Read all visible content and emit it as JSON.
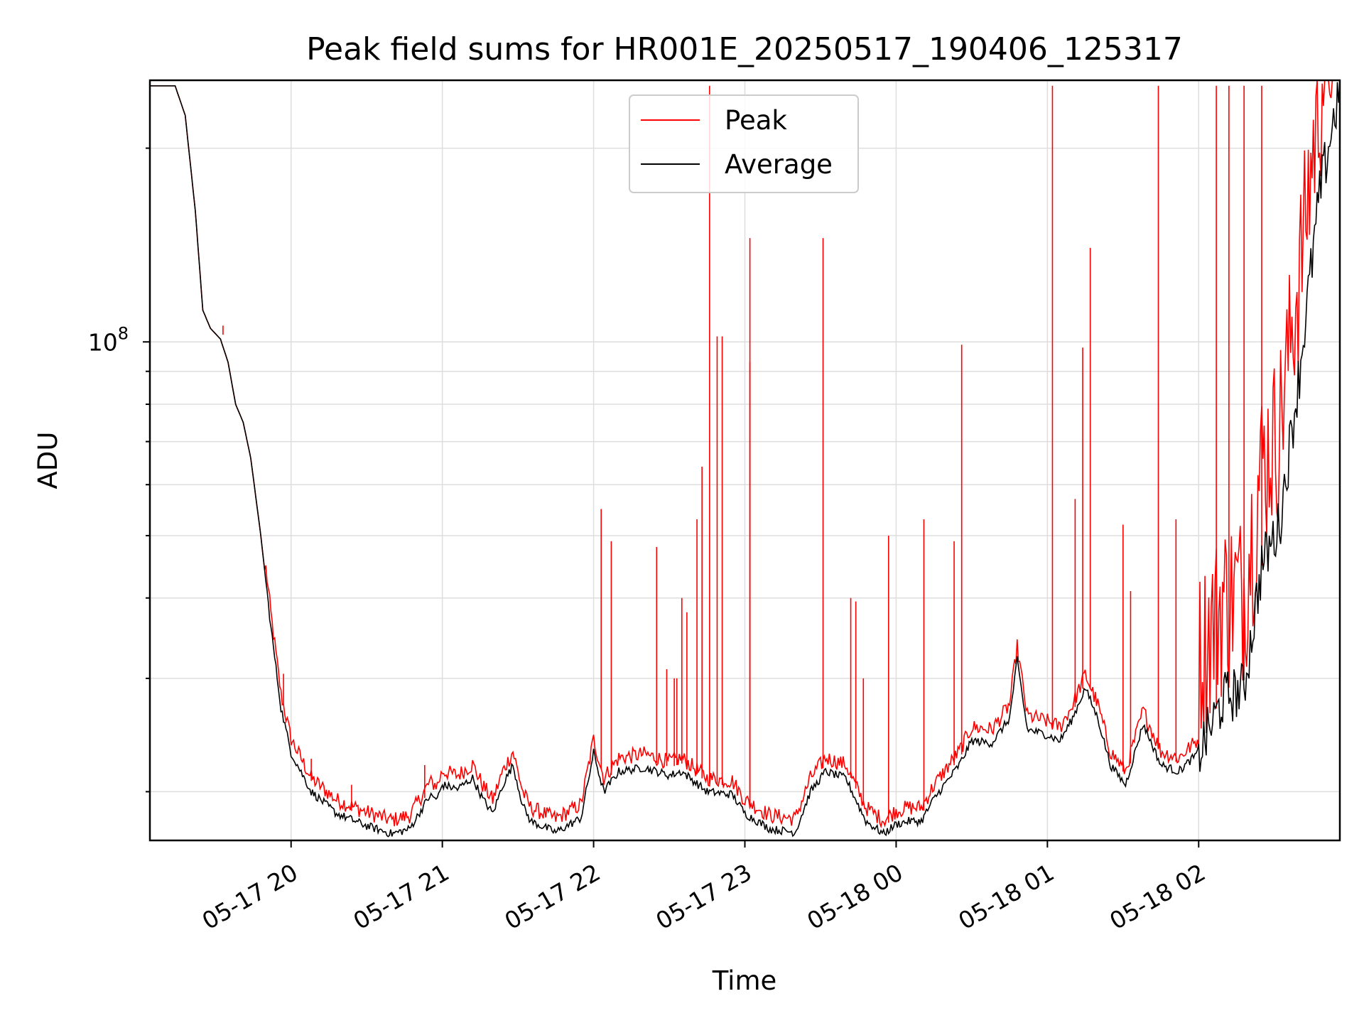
{
  "chart_data": {
    "type": "line",
    "title": "Peak field sums for HR001E_20250517_190406_125317",
    "xlabel": "Time",
    "ylabel": "ADU",
    "y_scale": "log",
    "ylim": [
      16800000,
      255000000
    ],
    "x_range": [
      "2025-05-17 19:04",
      "2025-05-18 02:56"
    ],
    "x_ticks": [
      {
        "label": "05-17 20",
        "time": "2025-05-17 20:00"
      },
      {
        "label": "05-17 21",
        "time": "2025-05-17 21:00"
      },
      {
        "label": "05-17 22",
        "time": "2025-05-17 22:00"
      },
      {
        "label": "05-17 23",
        "time": "2025-05-17 23:00"
      },
      {
        "label": "05-18 00",
        "time": "2025-05-18 00:00"
      },
      {
        "label": "05-18 01",
        "time": "2025-05-18 01:00"
      },
      {
        "label": "05-18 02",
        "time": "2025-05-18 02:00"
      }
    ],
    "y_major_ticks": [
      {
        "value": 100000000,
        "base": "10",
        "exponent": "8"
      }
    ],
    "y_minor_ticks": [
      20000000,
      30000000,
      40000000,
      50000000,
      60000000,
      70000000,
      80000000,
      90000000,
      200000000
    ],
    "grid": true,
    "legend_position": "top-center",
    "series": [
      {
        "name": "Average",
        "color": "#000000",
        "points": [
          [
            "2025-05-17 19:04",
            250000000.0
          ],
          [
            "2025-05-17 19:14",
            250000000.0
          ],
          [
            "2025-05-17 19:18",
            225000000.0
          ],
          [
            "2025-05-17 19:22",
            160000000.0
          ],
          [
            "2025-05-17 19:25",
            112000000.0
          ],
          [
            "2025-05-17 19:28",
            105000000.0
          ],
          [
            "2025-05-17 19:32",
            101000000.0
          ],
          [
            "2025-05-17 19:35",
            93000000.0
          ],
          [
            "2025-05-17 19:38",
            80000000.0
          ],
          [
            "2025-05-17 19:41",
            75000000.0
          ],
          [
            "2025-05-17 19:44",
            66000000.0
          ],
          [
            "2025-05-17 19:48",
            50000000.0
          ],
          [
            "2025-05-17 19:52",
            36000000.0
          ],
          [
            "2025-05-17 19:56",
            27000000.0
          ],
          [
            "2025-05-17 20:00",
            23000000.0
          ],
          [
            "2025-05-17 20:08",
            20000000.0
          ],
          [
            "2025-05-17 20:18",
            18500000.0
          ],
          [
            "2025-05-17 20:30",
            17700000.0
          ],
          [
            "2025-05-17 20:40",
            17200000.0
          ],
          [
            "2025-05-17 20:47",
            17500000.0
          ],
          [
            "2025-05-17 20:55",
            19700000.0
          ],
          [
            "2025-05-17 20:58",
            19500000.0
          ],
          [
            "2025-05-17 21:00",
            20500000.0
          ],
          [
            "2025-05-17 21:06",
            20200000.0
          ],
          [
            "2025-05-17 21:12",
            21000000.0
          ],
          [
            "2025-05-17 21:16",
            19500000.0
          ],
          [
            "2025-05-17 21:20",
            18500000.0
          ],
          [
            "2025-05-17 21:24",
            20500000.0
          ],
          [
            "2025-05-17 21:28",
            22000000.0
          ],
          [
            "2025-05-17 21:32",
            19000000.0
          ],
          [
            "2025-05-17 21:35",
            18000000.0
          ],
          [
            "2025-05-17 21:45",
            17300000.0
          ],
          [
            "2025-05-17 21:55",
            18200000.0
          ],
          [
            "2025-05-17 22:00",
            23000000.0
          ],
          [
            "2025-05-17 22:04",
            20000000.0
          ],
          [
            "2025-05-17 22:10",
            21500000.0
          ],
          [
            "2025-05-17 22:20",
            21800000.0
          ],
          [
            "2025-05-17 22:30",
            21200000.0
          ],
          [
            "2025-05-17 22:35",
            21500000.0
          ],
          [
            "2025-05-17 22:45",
            20000000.0
          ],
          [
            "2025-05-17 22:55",
            19800000.0
          ],
          [
            "2025-05-17 23:00",
            18500000.0
          ],
          [
            "2025-05-17 23:10",
            17500000.0
          ],
          [
            "2025-05-17 23:20",
            17300000.0
          ],
          [
            "2025-05-17 23:26",
            20000000.0
          ],
          [
            "2025-05-17 23:32",
            21500000.0
          ],
          [
            "2025-05-17 23:40",
            21000000.0
          ],
          [
            "2025-05-17 23:48",
            18000000.0
          ],
          [
            "2025-05-17 23:55",
            17200000.0
          ],
          [
            "2025-05-18 00:00",
            17800000.0
          ],
          [
            "2025-05-18 00:05",
            18000000.0
          ],
          [
            "2025-05-18 00:10",
            18000000.0
          ],
          [
            "2025-05-18 00:15",
            19500000.0
          ],
          [
            "2025-05-18 00:25",
            22000000.0
          ],
          [
            "2025-05-18 00:30",
            24000000.0
          ],
          [
            "2025-05-18 00:38",
            23800000.0
          ],
          [
            "2025-05-18 00:45",
            26000000.0
          ],
          [
            "2025-05-18 00:48",
            32000000.0
          ],
          [
            "2025-05-18 00:52",
            25000000.0
          ],
          [
            "2025-05-18 01:00",
            24500000.0
          ],
          [
            "2025-05-18 01:05",
            24000000.0
          ],
          [
            "2025-05-18 01:10",
            26000000.0
          ],
          [
            "2025-05-18 01:15",
            29000000.0
          ],
          [
            "2025-05-18 01:20",
            26000000.0
          ],
          [
            "2025-05-18 01:25",
            22000000.0
          ],
          [
            "2025-05-18 01:31",
            20500000.0
          ],
          [
            "2025-05-18 01:38",
            25500000.0
          ],
          [
            "2025-05-18 01:45",
            22000000.0
          ],
          [
            "2025-05-18 01:52",
            21500000.0
          ],
          [
            "2025-05-18 02:00",
            23000000.0
          ],
          [
            "2025-05-18 02:10",
            28000000.0
          ],
          [
            "2025-05-18 02:18",
            29000000.0
          ],
          [
            "2025-05-18 02:25",
            45000000.0
          ],
          [
            "2025-05-18 02:32",
            52000000.0
          ],
          [
            "2025-05-18 02:40",
            90000000.0
          ],
          [
            "2025-05-18 02:48",
            170000000.0
          ],
          [
            "2025-05-18 02:56",
            250000000.0
          ]
        ]
      },
      {
        "name": "Peak",
        "color": "#ff0000",
        "spikes": [
          [
            "2025-05-17 19:33",
            106000000.0
          ],
          [
            "2025-05-17 19:57",
            30500000.0
          ],
          [
            "2025-05-17 20:08",
            22500000.0
          ],
          [
            "2025-05-17 20:24",
            20500000.0
          ],
          [
            "2025-05-17 20:53",
            22000000.0
          ],
          [
            "2025-05-17 22:03",
            55000000.0
          ],
          [
            "2025-05-17 22:07",
            49000000.0
          ],
          [
            "2025-05-17 22:25",
            48000000.0
          ],
          [
            "2025-05-17 22:29",
            31000000.0
          ],
          [
            "2025-05-17 22:32",
            30000000.0
          ],
          [
            "2025-05-17 22:33",
            30000000.0
          ],
          [
            "2025-05-17 22:35",
            40000000.0
          ],
          [
            "2025-05-17 22:37",
            38000000.0
          ],
          [
            "2025-05-17 22:41",
            53000000.0
          ],
          [
            "2025-05-17 22:43",
            64000000.0
          ],
          [
            "2025-05-17 22:46",
            250000000.0
          ],
          [
            "2025-05-17 22:49",
            102000000.0
          ],
          [
            "2025-05-17 22:51",
            102000000.0
          ],
          [
            "2025-05-17 23:02",
            93000000.0
          ],
          [
            "2025-05-17 23:02",
            145000000.0
          ],
          [
            "2025-05-17 23:31",
            145000000.0
          ],
          [
            "2025-05-17 23:42",
            40000000.0
          ],
          [
            "2025-05-17 23:44",
            39500000.0
          ],
          [
            "2025-05-17 23:47",
            30000000.0
          ],
          [
            "2025-05-17 23:57",
            50000000.0
          ],
          [
            "2025-05-18 00:11",
            53000000.0
          ],
          [
            "2025-05-18 00:23",
            49000000.0
          ],
          [
            "2025-05-18 00:26",
            99000000.0
          ],
          [
            "2025-05-18 01:02",
            250000000.0
          ],
          [
            "2025-05-18 01:11",
            57000000.0
          ],
          [
            "2025-05-18 01:14",
            98000000.0
          ],
          [
            "2025-05-18 01:17",
            140000000.0
          ],
          [
            "2025-05-18 01:30",
            52000000.0
          ],
          [
            "2025-05-18 01:33",
            41000000.0
          ],
          [
            "2025-05-18 01:44",
            250000000.0
          ],
          [
            "2025-05-18 01:51",
            53000000.0
          ],
          [
            "2025-05-18 02:07",
            250000000.0
          ],
          [
            "2025-05-18 02:12",
            250000000.0
          ],
          [
            "2025-05-18 02:18",
            250000000.0
          ],
          [
            "2025-05-18 02:25",
            250000000.0
          ]
        ]
      }
    ]
  }
}
